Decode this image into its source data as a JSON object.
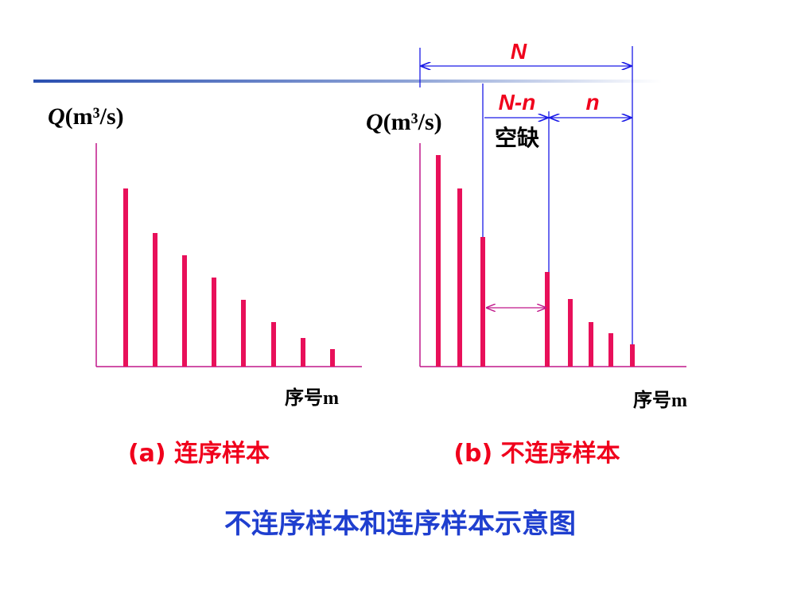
{
  "panel_a": {
    "y_label": {
      "symbol": "Q",
      "unit": "(m³/s)"
    },
    "x_label": "序号m",
    "caption": "(a) 连序样本"
  },
  "panel_b": {
    "y_label": {
      "symbol": "Q",
      "unit": "(m³/s)"
    },
    "x_label": "序号m",
    "caption": "(b) 不连序样本",
    "span_total": "N",
    "span_gap": "N-n",
    "span_observed": "n",
    "gap_label": "空缺"
  },
  "title": "不连序样本和连序样本示意图"
}
